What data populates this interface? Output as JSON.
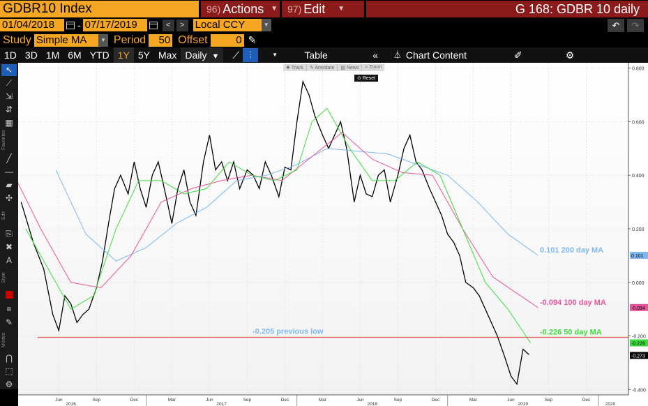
{
  "topbar": {
    "ticker": "GDBR10 Index",
    "actions_num": "96)",
    "actions_label": "Actions",
    "edit_num": "97)",
    "edit_label": "Edit",
    "window_title": "G 168: GDBR 10 daily"
  },
  "range": {
    "start_date": "01/04/2018",
    "separator": "-",
    "end_date": "07/17/2019",
    "currency": "Local CCY"
  },
  "study": {
    "label": "Study",
    "value": "Simple MA",
    "period_label": "Period",
    "period_value": "50",
    "offset_label": "Offset",
    "offset_value": "0"
  },
  "toolbar": {
    "timeframes": [
      "1D",
      "3D",
      "1M",
      "6M",
      "YTD",
      "1Y",
      "5Y",
      "Max"
    ],
    "selected_timeframe": "1Y",
    "interval": "Daily",
    "table_label": "Table",
    "chart_content_label": "Chart Content"
  },
  "chart_buttons": {
    "track": "Track",
    "annotate": "Annotate",
    "news": "News",
    "zoom": "Zoom",
    "reset": "Reset"
  },
  "left_tools": {
    "favorites_label": "Favorites",
    "edit_label": "Edit",
    "style_label": "Style",
    "modes_label": "Modes"
  },
  "colors": {
    "price": "#000000",
    "ma200": "#7fb8f0",
    "ma100": "#e8559c",
    "ma50": "#3ddc3d",
    "previous_low": "#d9534f",
    "orange": "#f5a623",
    "menu_red": "#8b1a1a"
  },
  "annotations": {
    "ma200": "0.101 200 day MA",
    "ma100": "-0.094 100 day MA",
    "ma50": "-0.226 50 day MA",
    "previous_low": "-0.205 previous low"
  },
  "price_tags": {
    "ma200": "0.101",
    "ma100": "-0.094",
    "ma50": "-0.226",
    "last": "-0.273"
  },
  "chart_data": {
    "type": "line",
    "title": "",
    "ylim": [
      -0.42,
      0.82
    ],
    "y_ticks": [
      "0.800",
      "0.600",
      "0.400",
      "0.200",
      "0.000",
      "-0.200",
      "-0.400"
    ],
    "y_tick_values": [
      0.8,
      0.6,
      0.4,
      0.2,
      0.0,
      -0.2,
      -0.4
    ],
    "x_ticks": [
      "Jun",
      "Sep",
      "Dec",
      "Mar",
      "Jun",
      "Sep",
      "Dec",
      "Mar",
      "Jun",
      "Sep",
      "Dec",
      "Mar",
      "Jun",
      "Sep",
      "Dec"
    ],
    "x_tick_values": [
      2016.42,
      2016.67,
      2016.92,
      2017.17,
      2017.42,
      2017.67,
      2017.92,
      2018.17,
      2018.42,
      2018.67,
      2018.92,
      2019.17,
      2019.42,
      2019.67,
      2019.92
    ],
    "years": [
      "2016",
      "2017",
      "2018",
      "2019",
      "2020"
    ],
    "year_values": [
      2016.0,
      2017.0,
      2018.0,
      2019.0,
      2020.0
    ],
    "xlim": [
      2016.15,
      2020.2
    ],
    "horizontal_line": -0.205,
    "series": [
      {
        "name": "GDBR10 Index",
        "x": [
          2016.17,
          2016.25,
          2016.32,
          2016.38,
          2016.42,
          2016.46,
          2016.5,
          2016.54,
          2016.58,
          2016.62,
          2016.67,
          2016.71,
          2016.75,
          2016.79,
          2016.83,
          2016.88,
          2016.92,
          2016.96,
          2017.0,
          2017.04,
          2017.08,
          2017.12,
          2017.17,
          2017.21,
          2017.25,
          2017.29,
          2017.33,
          2017.38,
          2017.42,
          2017.46,
          2017.5,
          2017.54,
          2017.58,
          2017.62,
          2017.67,
          2017.71,
          2017.75,
          2017.79,
          2017.83,
          2017.88,
          2017.92,
          2017.96,
          2018.0,
          2018.04,
          2018.08,
          2018.12,
          2018.17,
          2018.21,
          2018.25,
          2018.29,
          2018.33,
          2018.38,
          2018.42,
          2018.46,
          2018.5,
          2018.54,
          2018.58,
          2018.62,
          2018.67,
          2018.71,
          2018.75,
          2018.79,
          2018.83,
          2018.88,
          2018.92,
          2018.96,
          2019.0,
          2019.04,
          2019.08,
          2019.12,
          2019.17,
          2019.21,
          2019.25,
          2019.29,
          2019.33,
          2019.38,
          2019.42,
          2019.46,
          2019.5,
          2019.54
        ],
        "values": [
          0.3,
          0.15,
          0.05,
          -0.12,
          -0.18,
          -0.05,
          -0.08,
          -0.15,
          -0.12,
          -0.1,
          -0.02,
          0.08,
          0.22,
          0.35,
          0.4,
          0.33,
          0.45,
          0.35,
          0.28,
          0.4,
          0.45,
          0.35,
          0.22,
          0.35,
          0.42,
          0.3,
          0.25,
          0.45,
          0.55,
          0.42,
          0.45,
          0.38,
          0.45,
          0.35,
          0.42,
          0.4,
          0.35,
          0.45,
          0.4,
          0.32,
          0.43,
          0.42,
          0.6,
          0.75,
          0.7,
          0.62,
          0.55,
          0.5,
          0.55,
          0.6,
          0.5,
          0.3,
          0.4,
          0.33,
          0.32,
          0.4,
          0.42,
          0.3,
          0.4,
          0.5,
          0.55,
          0.45,
          0.42,
          0.35,
          0.3,
          0.25,
          0.18,
          0.15,
          0.1,
          0.0,
          -0.02,
          -0.05,
          -0.1,
          -0.15,
          -0.2,
          -0.28,
          -0.35,
          -0.38,
          -0.25,
          -0.27
        ]
      },
      {
        "name": "200 day MA",
        "x": [
          2016.4,
          2016.6,
          2016.8,
          2017.0,
          2017.2,
          2017.4,
          2017.6,
          2017.8,
          2018.0,
          2018.2,
          2018.4,
          2018.6,
          2018.8,
          2019.0,
          2019.2,
          2019.4,
          2019.6
        ],
        "values": [
          0.42,
          0.18,
          0.08,
          0.13,
          0.22,
          0.28,
          0.38,
          0.4,
          0.44,
          0.5,
          0.49,
          0.48,
          0.44,
          0.4,
          0.3,
          0.18,
          0.101
        ]
      },
      {
        "name": "100 day MA",
        "x": [
          2016.15,
          2016.3,
          2016.5,
          2016.7,
          2016.9,
          2017.1,
          2017.3,
          2017.5,
          2017.7,
          2017.9,
          2018.1,
          2018.3,
          2018.5,
          2018.7,
          2018.9,
          2019.1,
          2019.3,
          2019.6
        ],
        "values": [
          0.37,
          0.2,
          0.0,
          -0.02,
          0.1,
          0.3,
          0.35,
          0.38,
          0.4,
          0.38,
          0.47,
          0.56,
          0.46,
          0.41,
          0.4,
          0.2,
          0.02,
          -0.094
        ]
      },
      {
        "name": "50 day MA",
        "x": [
          2016.2,
          2016.35,
          2016.5,
          2016.65,
          2016.8,
          2016.95,
          2017.1,
          2017.25,
          2017.4,
          2017.55,
          2017.7,
          2017.85,
          2018.0,
          2018.1,
          2018.2,
          2018.35,
          2018.5,
          2018.65,
          2018.8,
          2018.95,
          2019.1,
          2019.25,
          2019.4,
          2019.55
        ],
        "values": [
          0.2,
          0.05,
          -0.1,
          -0.05,
          0.2,
          0.38,
          0.38,
          0.33,
          0.35,
          0.45,
          0.4,
          0.38,
          0.42,
          0.6,
          0.65,
          0.5,
          0.38,
          0.38,
          0.45,
          0.4,
          0.2,
          0.0,
          -0.1,
          -0.226
        ]
      }
    ]
  }
}
